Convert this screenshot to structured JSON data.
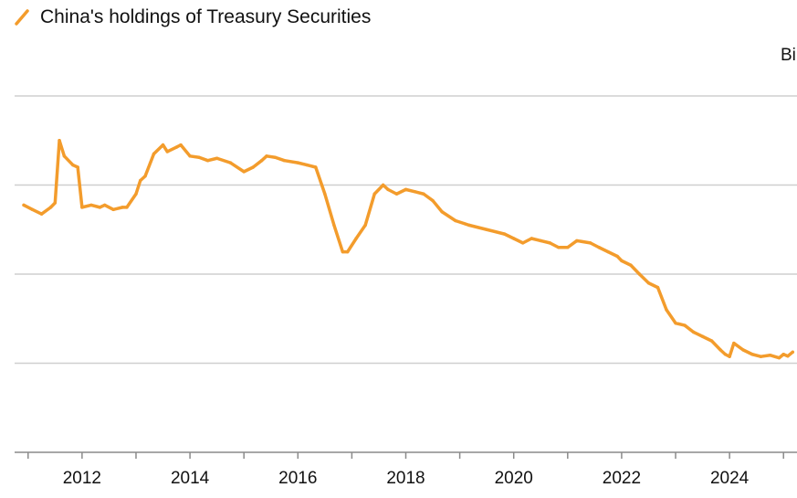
{
  "chart_data": {
    "type": "line",
    "title": "China's holdings of Treasury Securities",
    "unit_label": "Bi",
    "xlabel": "",
    "ylabel": "",
    "x_tick_labels": [
      "2012",
      "2014",
      "2016",
      "2018",
      "2020",
      "2022",
      "2024"
    ],
    "xlim": [
      2010.75,
      2025.25
    ],
    "ylim": [
      600,
      1400
    ],
    "y_gridlines": [
      800,
      1000,
      1200,
      1400
    ],
    "grid": true,
    "legend_position": "top-left",
    "colors": {
      "series": "#f39c2c",
      "grid": "#cfcfcf",
      "axis": "#8a8a8a",
      "text": "#111111"
    },
    "series": [
      {
        "name": "China's holdings of Treasury Securities",
        "x": [
          2010.92,
          2011.08,
          2011.25,
          2011.42,
          2011.5,
          2011.58,
          2011.67,
          2011.83,
          2011.92,
          2012.0,
          2012.17,
          2012.33,
          2012.42,
          2012.58,
          2012.75,
          2012.83,
          2013.0,
          2013.08,
          2013.17,
          2013.33,
          2013.5,
          2013.58,
          2013.75,
          2013.83,
          2014.0,
          2014.17,
          2014.33,
          2014.5,
          2014.75,
          2015.0,
          2015.17,
          2015.33,
          2015.42,
          2015.58,
          2015.75,
          2016.0,
          2016.17,
          2016.33,
          2016.5,
          2016.67,
          2016.83,
          2016.92,
          2017.08,
          2017.25,
          2017.42,
          2017.58,
          2017.67,
          2017.83,
          2018.0,
          2018.17,
          2018.33,
          2018.5,
          2018.67,
          2018.92,
          2019.17,
          2019.5,
          2019.83,
          2020.0,
          2020.17,
          2020.33,
          2020.5,
          2020.67,
          2020.83,
          2021.0,
          2021.17,
          2021.42,
          2021.58,
          2021.75,
          2021.92,
          2022.0,
          2022.17,
          2022.33,
          2022.5,
          2022.67,
          2022.83,
          2023.0,
          2023.17,
          2023.33,
          2023.5,
          2023.67,
          2023.83,
          2023.92,
          2024.0,
          2024.08,
          2024.25,
          2024.42,
          2024.58,
          2024.75,
          2024.92,
          2025.0,
          2025.08,
          2025.17
        ],
        "y": [
          1155,
          1145,
          1135,
          1150,
          1160,
          1300,
          1265,
          1245,
          1240,
          1150,
          1155,
          1150,
          1155,
          1145,
          1150,
          1150,
          1180,
          1210,
          1220,
          1270,
          1290,
          1275,
          1285,
          1290,
          1265,
          1262,
          1255,
          1260,
          1250,
          1230,
          1240,
          1255,
          1265,
          1262,
          1255,
          1250,
          1245,
          1240,
          1180,
          1110,
          1050,
          1050,
          1080,
          1110,
          1180,
          1200,
          1190,
          1180,
          1190,
          1185,
          1180,
          1165,
          1140,
          1120,
          1110,
          1100,
          1090,
          1080,
          1070,
          1080,
          1075,
          1070,
          1060,
          1060,
          1075,
          1070,
          1060,
          1050,
          1040,
          1030,
          1020,
          1000,
          980,
          970,
          920,
          890,
          885,
          870,
          860,
          850,
          830,
          820,
          815,
          845,
          830,
          820,
          815,
          818,
          812,
          820,
          816,
          825
        ]
      }
    ]
  }
}
